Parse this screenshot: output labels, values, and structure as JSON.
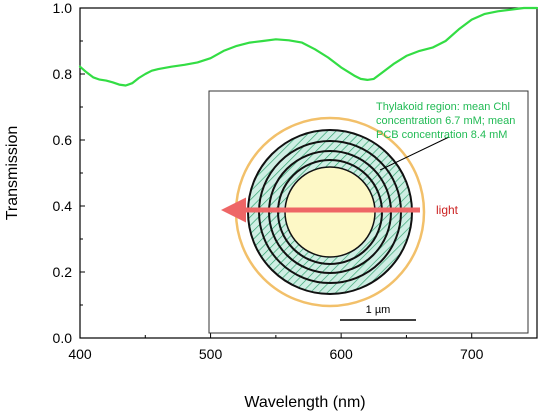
{
  "chart_data": {
    "type": "line",
    "xlabel": "Wavelength (nm)",
    "ylabel": "Transmission",
    "xlim": [
      400,
      750
    ],
    "ylim": [
      0.0,
      1.0
    ],
    "xticks": [
      400,
      500,
      600,
      700
    ],
    "yticks": [
      0.0,
      0.2,
      0.4,
      0.6,
      0.8,
      1.0
    ],
    "grid": false,
    "series": [
      {
        "color": "#33dd44",
        "x": [
          400,
          405,
          410,
          415,
          420,
          425,
          430,
          435,
          440,
          445,
          450,
          455,
          460,
          470,
          480,
          490,
          500,
          510,
          520,
          530,
          540,
          550,
          560,
          570,
          580,
          590,
          600,
          610,
          615,
          620,
          625,
          630,
          640,
          650,
          660,
          670,
          680,
          690,
          700,
          710,
          720,
          730,
          740,
          750
        ],
        "y": [
          0.822,
          0.805,
          0.79,
          0.783,
          0.78,
          0.775,
          0.768,
          0.765,
          0.772,
          0.788,
          0.8,
          0.81,
          0.815,
          0.822,
          0.828,
          0.835,
          0.848,
          0.87,
          0.885,
          0.895,
          0.9,
          0.905,
          0.902,
          0.895,
          0.875,
          0.85,
          0.82,
          0.795,
          0.785,
          0.782,
          0.785,
          0.8,
          0.83,
          0.855,
          0.87,
          0.88,
          0.9,
          0.935,
          0.965,
          0.982,
          0.99,
          0.995,
          1.0,
          1.0
        ]
      }
    ],
    "annotations": {
      "inset_label": "Thylakoid region: mean Chl concentration 6.7 mM; mean PCB concentration 8.4 mM",
      "inset_label_lines": [
        "Thylakoid region: mean Chl",
        "concentration 6.7 mM; mean",
        "PCB concentration 8.4 mM"
      ],
      "arrow_label": "light",
      "scale_bar_label": "1 µm"
    },
    "colors": {
      "curve": "#33dd44",
      "inset_text": "#22bb55",
      "arrow": "#ee6666",
      "arrow_text": "#cc2222",
      "outer_ring": "#f2c06a",
      "thylakoid_fill": "#cfeee4",
      "thylakoid_hatch": "#2aa06a",
      "center_fill": "#fdf8c6"
    }
  }
}
